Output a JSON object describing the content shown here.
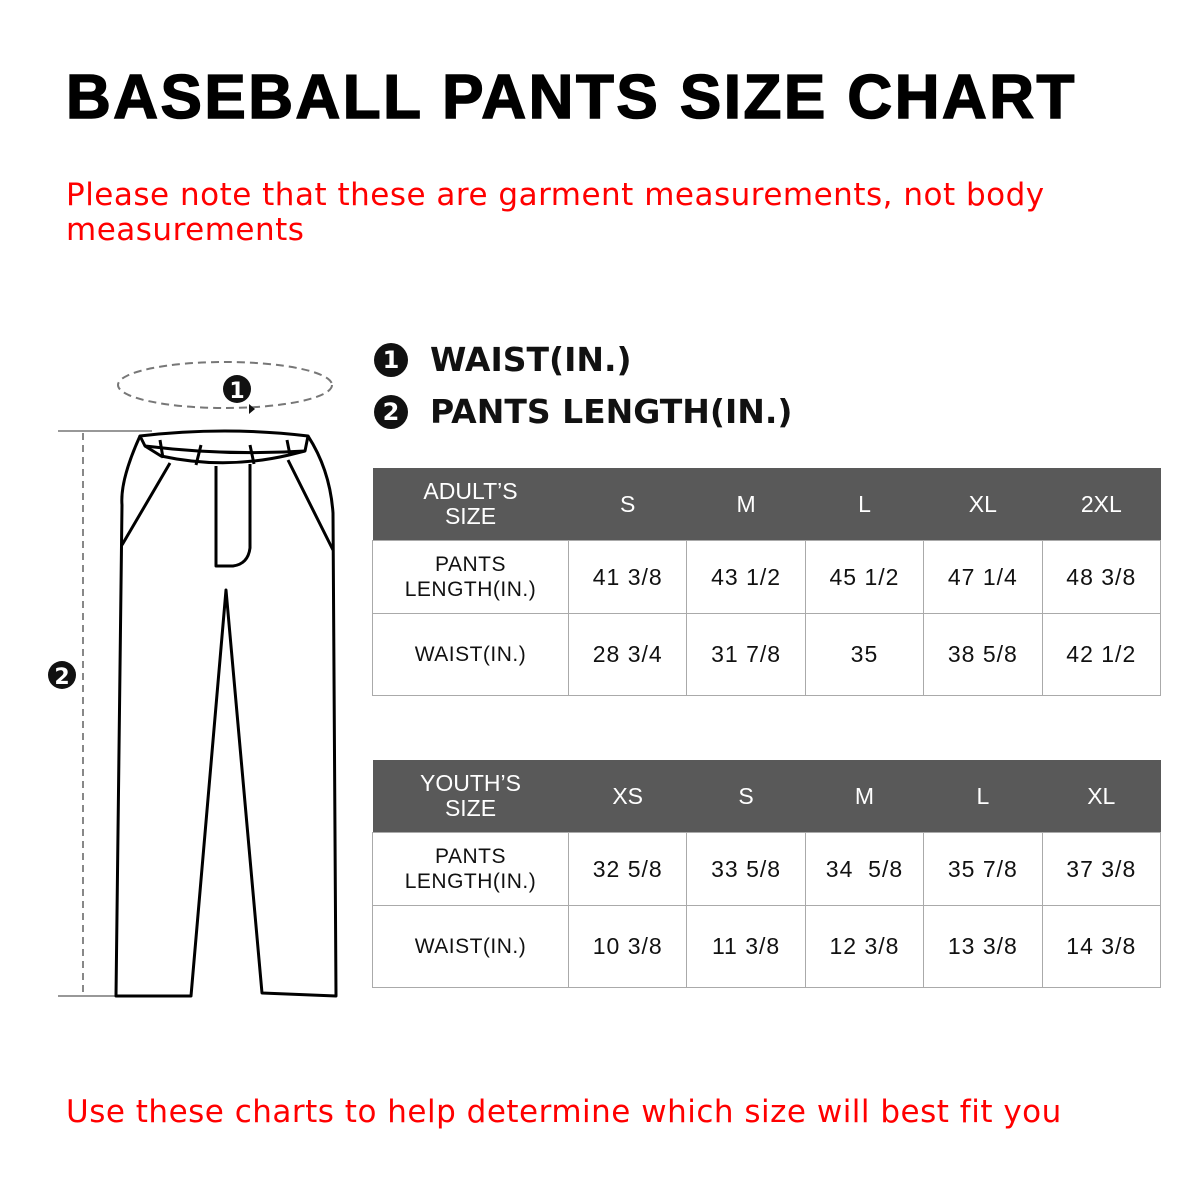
{
  "title": "BASEBALL PANTS SIZE CHART",
  "note": "Please note that these are garment measurements, not body measurements",
  "legend": [
    {
      "badge": "1",
      "label": "WAIST(IN.)"
    },
    {
      "badge": "2",
      "label": "PANTS LENGTH(IN.)"
    }
  ],
  "diagram": {
    "waist_marker": "1",
    "length_marker": "2"
  },
  "adult_table": {
    "header": [
      "ADULT’S SIZE",
      "S",
      "M",
      "L",
      "XL",
      "2XL"
    ],
    "rows": [
      {
        "label": "PANTS LENGTH(IN.)",
        "values": [
          "41 3/8",
          "43 1/2",
          "45 1/2",
          "47 1/4",
          "48 3/8"
        ]
      },
      {
        "label": "WAIST(IN.)",
        "values": [
          "28 3/4",
          "31 7/8",
          "35",
          "38 5/8",
          "42 1/2"
        ]
      }
    ]
  },
  "youth_table": {
    "header": [
      "YOUTH’S SIZE",
      "XS",
      "S",
      "M",
      "L",
      "XL"
    ],
    "rows": [
      {
        "label": "PANTS LENGTH(IN.)",
        "values": [
          "32 5/8",
          "33 5/8",
          "34  5/8",
          "35 7/8",
          "37 3/8"
        ]
      },
      {
        "label": "WAIST(IN.)",
        "values": [
          "10 3/8",
          "11 3/8",
          "12 3/8",
          "13 3/8",
          "14 3/8"
        ]
      }
    ]
  },
  "footer": "Use these charts to help determine which size will best fit you",
  "colors": {
    "accent_red": "#ff0000",
    "table_header": "#595959"
  }
}
